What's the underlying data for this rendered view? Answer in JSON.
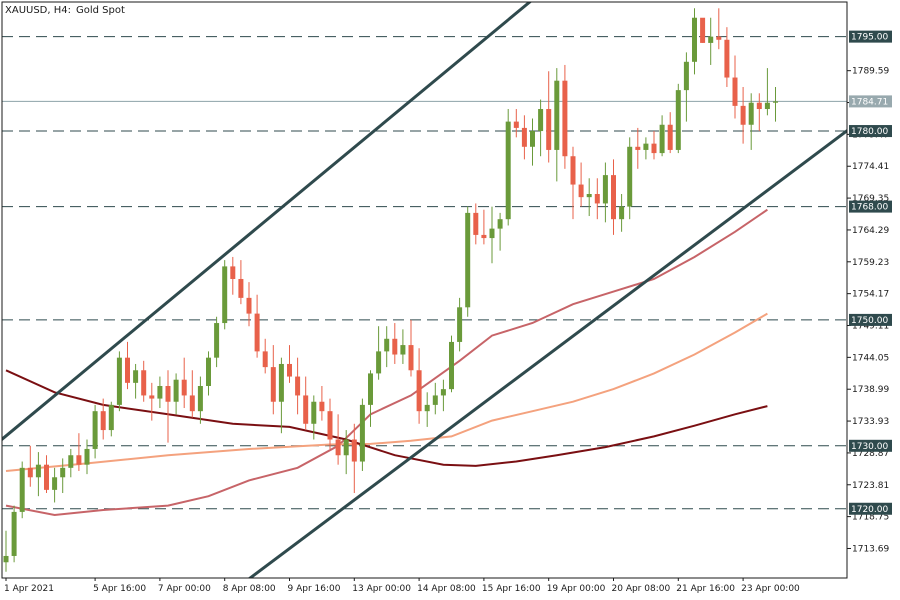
{
  "header": {
    "symbol": "XAUUSD, H4:",
    "name": "Gold Spot"
  },
  "colors": {
    "bull": "#6a9a3a",
    "bear": "#e8614a",
    "channel": "#2f4a4d",
    "level": "#2f4a4d",
    "price_line": "#8da2a8",
    "label_bg": "#2f4a4d",
    "label_current_bg": "#98a9ae",
    "ma_fast": "#c76468",
    "ma_mid": "#f4a27e",
    "ma_slow": "#7a0f12"
  },
  "chart_data": {
    "type": "candlestick",
    "ylim": [
      1709.0,
      1800.5
    ],
    "y_ticks": [
      "1713.69",
      "1718.75",
      "1723.81",
      "1728.87",
      "1733.93",
      "1738.99",
      "1744.05",
      "1749.11",
      "1754.17",
      "1759.23",
      "1764.29",
      "1769.35",
      "1774.41",
      "1779.47",
      "1784.53",
      "1789.59"
    ],
    "x_ticks": [
      "1 Apr 2021",
      "5 Apr 16:00",
      "7 Apr 00:00",
      "8 Apr 08:00",
      "9 Apr 16:00",
      "13 Apr 00:00",
      "14 Apr 08:00",
      "15 Apr 16:00",
      "19 Apr 00:00",
      "20 Apr 08:00",
      "21 Apr 16:00",
      "23 Apr 00:00"
    ],
    "x_tick_index": [
      0,
      11,
      19,
      27,
      35,
      43,
      51,
      59,
      67,
      75,
      83,
      91
    ],
    "horizontal_levels": [
      {
        "value": 1795.0,
        "label": "1795.00"
      },
      {
        "value": 1780.0,
        "label": "1780.00"
      },
      {
        "value": 1768.0,
        "label": "1768.00"
      },
      {
        "value": 1750.0,
        "label": "1750.00"
      },
      {
        "value": 1730.0,
        "label": "1730.00"
      },
      {
        "value": 1720.0,
        "label": "1720.00"
      }
    ],
    "current_price": {
      "value": 1784.71,
      "label": "1784.71"
    },
    "channel_lines": [
      {
        "start": [
          -1,
          1730.5
        ],
        "end": [
          67,
          1803.0
        ]
      },
      {
        "start": [
          26,
          1705.0
        ],
        "end": [
          110,
          1786.0
        ]
      }
    ],
    "candles": [
      [
        1711.5,
        1716.5,
        1710.0,
        1712.5
      ],
      [
        1712.5,
        1720.5,
        1711.5,
        1719.5
      ],
      [
        1719.5,
        1727.5,
        1718.5,
        1726.5
      ],
      [
        1726.5,
        1730.0,
        1723.5,
        1725.0
      ],
      [
        1725.0,
        1729.0,
        1722.0,
        1727.0
      ],
      [
        1727.0,
        1728.5,
        1722.5,
        1723.0
      ],
      [
        1723.0,
        1726.5,
        1721.0,
        1725.0
      ],
      [
        1725.0,
        1728.0,
        1722.5,
        1726.5
      ],
      [
        1726.5,
        1729.5,
        1725.0,
        1728.5
      ],
      [
        1728.5,
        1732.0,
        1726.0,
        1727.0
      ],
      [
        1727.0,
        1731.0,
        1725.5,
        1729.5
      ],
      [
        1729.5,
        1736.5,
        1728.0,
        1735.5
      ],
      [
        1735.5,
        1737.5,
        1731.0,
        1732.5
      ],
      [
        1732.5,
        1737.0,
        1731.5,
        1736.5
      ],
      [
        1736.5,
        1745.0,
        1735.5,
        1744.0
      ],
      [
        1744.0,
        1746.5,
        1739.0,
        1740.0
      ],
      [
        1740.0,
        1743.0,
        1737.5,
        1742.0
      ],
      [
        1742.0,
        1743.5,
        1737.0,
        1738.0
      ],
      [
        1738.0,
        1740.0,
        1734.0,
        1737.5
      ],
      [
        1737.5,
        1741.0,
        1736.0,
        1739.5
      ],
      [
        1739.5,
        1742.0,
        1730.5,
        1737.0
      ],
      [
        1737.0,
        1741.5,
        1735.0,
        1740.5
      ],
      [
        1740.5,
        1744.0,
        1736.0,
        1738.0
      ],
      [
        1738.0,
        1742.0,
        1734.5,
        1735.5
      ],
      [
        1735.5,
        1741.0,
        1733.5,
        1739.5
      ],
      [
        1739.5,
        1745.0,
        1738.0,
        1744.0
      ],
      [
        1744.0,
        1750.5,
        1742.5,
        1749.5
      ],
      [
        1749.5,
        1759.5,
        1748.5,
        1758.5
      ],
      [
        1758.5,
        1760.0,
        1754.0,
        1756.5
      ],
      [
        1756.5,
        1759.5,
        1752.5,
        1753.5
      ],
      [
        1753.5,
        1756.0,
        1749.0,
        1751.0
      ],
      [
        1751.0,
        1754.0,
        1744.0,
        1745.0
      ],
      [
        1745.0,
        1747.0,
        1741.5,
        1742.5
      ],
      [
        1742.5,
        1746.0,
        1735.0,
        1737.0
      ],
      [
        1737.0,
        1744.0,
        1732.0,
        1743.0
      ],
      [
        1743.0,
        1746.0,
        1740.0,
        1741.0
      ],
      [
        1741.0,
        1744.0,
        1735.0,
        1738.0
      ],
      [
        1738.0,
        1741.0,
        1732.5,
        1733.5
      ],
      [
        1733.5,
        1738.0,
        1731.0,
        1737.0
      ],
      [
        1737.0,
        1739.5,
        1734.0,
        1735.5
      ],
      [
        1735.5,
        1737.5,
        1729.5,
        1731.0
      ],
      [
        1731.0,
        1735.0,
        1727.0,
        1728.5
      ],
      [
        1728.5,
        1732.5,
        1725.5,
        1731.0
      ],
      [
        1731.0,
        1733.5,
        1722.5,
        1727.5
      ],
      [
        1727.5,
        1737.5,
        1726.0,
        1736.5
      ],
      [
        1736.5,
        1742.0,
        1733.0,
        1741.5
      ],
      [
        1741.5,
        1749.0,
        1740.5,
        1745.0
      ],
      [
        1745.0,
        1749.0,
        1742.5,
        1747.0
      ],
      [
        1747.0,
        1749.5,
        1743.0,
        1744.5
      ],
      [
        1744.5,
        1748.5,
        1743.0,
        1746.0
      ],
      [
        1746.0,
        1750.0,
        1741.0,
        1742.0
      ],
      [
        1742.0,
        1745.5,
        1733.5,
        1735.5
      ],
      [
        1735.5,
        1738.5,
        1733.0,
        1736.5
      ],
      [
        1736.5,
        1740.0,
        1735.0,
        1738.0
      ],
      [
        1738.0,
        1740.5,
        1735.5,
        1739.0
      ],
      [
        1739.0,
        1747.5,
        1738.5,
        1746.5
      ],
      [
        1746.5,
        1753.5,
        1745.0,
        1752.0
      ],
      [
        1752.0,
        1768.0,
        1750.5,
        1767.0
      ],
      [
        1767.0,
        1768.5,
        1762.0,
        1763.5
      ],
      [
        1763.5,
        1767.5,
        1762.0,
        1763.0
      ],
      [
        1763.0,
        1768.0,
        1759.0,
        1764.5
      ],
      [
        1764.5,
        1767.0,
        1761.0,
        1766.0
      ],
      [
        1766.0,
        1783.5,
        1765.0,
        1781.5
      ],
      [
        1781.5,
        1783.5,
        1779.0,
        1780.5
      ],
      [
        1780.5,
        1782.5,
        1775.5,
        1777.5
      ],
      [
        1777.5,
        1782.0,
        1774.5,
        1780.0
      ],
      [
        1780.0,
        1785.0,
        1776.0,
        1783.5
      ],
      [
        1783.5,
        1789.5,
        1775.0,
        1777.0
      ],
      [
        1777.0,
        1790.0,
        1772.0,
        1788.0
      ],
      [
        1788.0,
        1790.5,
        1774.0,
        1776.0
      ],
      [
        1776.0,
        1777.5,
        1766.0,
        1771.5
      ],
      [
        1771.5,
        1775.0,
        1768.0,
        1769.5
      ],
      [
        1769.5,
        1772.5,
        1766.5,
        1770.0
      ],
      [
        1770.0,
        1772.5,
        1766.0,
        1768.5
      ],
      [
        1768.5,
        1775.0,
        1765.5,
        1773.0
      ],
      [
        1773.0,
        1775.5,
        1763.5,
        1766.0
      ],
      [
        1766.0,
        1770.0,
        1764.0,
        1768.0
      ],
      [
        1768.0,
        1779.0,
        1766.0,
        1777.5
      ],
      [
        1777.5,
        1780.5,
        1774.0,
        1777.0
      ],
      [
        1777.0,
        1779.0,
        1775.5,
        1778.0
      ],
      [
        1778.0,
        1780.0,
        1775.5,
        1776.5
      ],
      [
        1776.5,
        1782.5,
        1776.0,
        1781.0
      ],
      [
        1781.0,
        1783.0,
        1776.5,
        1777.0
      ],
      [
        1777.0,
        1787.5,
        1776.5,
        1786.5
      ],
      [
        1786.5,
        1792.5,
        1781.5,
        1791.0
      ],
      [
        1791.0,
        1799.5,
        1789.0,
        1798.0
      ],
      [
        1798.0,
        1797.5,
        1794.0,
        1794.0
      ],
      [
        1794.0,
        1798.0,
        1790.5,
        1795.0
      ],
      [
        1795.0,
        1799.5,
        1793.0,
        1794.5
      ],
      [
        1794.5,
        1796.5,
        1787.0,
        1788.5
      ],
      [
        1788.5,
        1792.0,
        1782.0,
        1784.0
      ],
      [
        1784.0,
        1787.0,
        1778.0,
        1781.0
      ],
      [
        1781.0,
        1786.0,
        1777.0,
        1784.5
      ],
      [
        1784.5,
        1786.0,
        1780.0,
        1783.5
      ],
      [
        1783.5,
        1790.0,
        1782.5,
        1784.5
      ],
      [
        1784.5,
        1787.0,
        1781.5,
        1784.7
      ]
    ],
    "moving_averages": [
      {
        "color_key": "ma_fast",
        "points": [
          [
            0,
            1720.5
          ],
          [
            6,
            1719.0
          ],
          [
            12,
            1719.8
          ],
          [
            20,
            1720.5
          ],
          [
            25,
            1722.0
          ],
          [
            30,
            1724.5
          ],
          [
            36,
            1726.5
          ],
          [
            41,
            1730.0
          ],
          [
            45,
            1735.0
          ],
          [
            50,
            1738.0
          ],
          [
            56,
            1743.5
          ],
          [
            60,
            1747.5
          ],
          [
            65,
            1749.5
          ],
          [
            70,
            1752.5
          ],
          [
            75,
            1754.5
          ],
          [
            80,
            1756.5
          ],
          [
            85,
            1760.0
          ],
          [
            90,
            1764.0
          ],
          [
            94,
            1767.5
          ]
        ]
      },
      {
        "color_key": "ma_mid",
        "points": [
          [
            0,
            1726.0
          ],
          [
            10,
            1727.2
          ],
          [
            20,
            1728.5
          ],
          [
            30,
            1729.5
          ],
          [
            40,
            1730.2
          ],
          [
            45,
            1730.3
          ],
          [
            50,
            1730.8
          ],
          [
            55,
            1731.5
          ],
          [
            60,
            1734.0
          ],
          [
            65,
            1735.5
          ],
          [
            70,
            1737.0
          ],
          [
            75,
            1739.0
          ],
          [
            80,
            1741.5
          ],
          [
            85,
            1744.5
          ],
          [
            90,
            1748.0
          ],
          [
            94,
            1751.0
          ]
        ]
      },
      {
        "color_key": "ma_slow",
        "points": [
          [
            0,
            1742.0
          ],
          [
            6,
            1738.5
          ],
          [
            12,
            1736.5
          ],
          [
            20,
            1735.0
          ],
          [
            28,
            1733.5
          ],
          [
            35,
            1733.0
          ],
          [
            42,
            1731.0
          ],
          [
            48,
            1728.5
          ],
          [
            54,
            1727.0
          ],
          [
            58,
            1726.8
          ],
          [
            63,
            1727.5
          ],
          [
            68,
            1728.5
          ],
          [
            74,
            1729.8
          ],
          [
            80,
            1731.5
          ],
          [
            85,
            1733.2
          ],
          [
            90,
            1735.0
          ],
          [
            94,
            1736.3
          ]
        ]
      }
    ]
  }
}
